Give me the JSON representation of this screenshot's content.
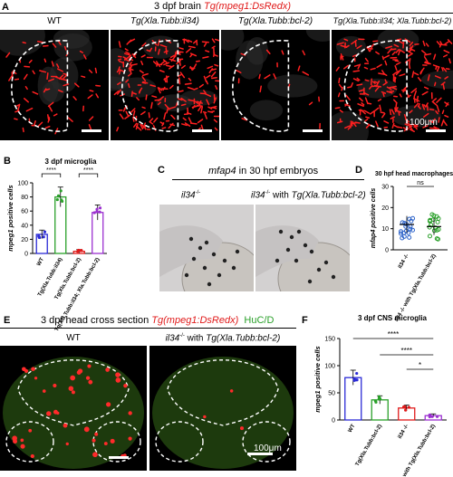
{
  "panelA": {
    "letter": "A",
    "title_prefix": "3 dpf brain ",
    "title_red": "Tg(mpeg1:DsRedx)",
    "labels": [
      "WT",
      "Tg(Xla.Tubb:il34)",
      "Tg(Xla.Tubb:bcl-2)",
      "Tg(Xla.Tubb:il34; Xla.Tubb:bcl-2)"
    ],
    "scale": "100μm"
  },
  "panelB": {
    "letter": "B",
    "chart_data": {
      "type": "bar",
      "title": "3 dpf microglia",
      "ylabel": "mpeg1 positive cells",
      "categories": [
        "WT",
        "Tg(Xla.Tubb:il34)",
        "Tg(Xla.Tubb:bcl-2)",
        "Tg(Xla.Tubb:il34; Xla.Tubb:bcl-2)"
      ],
      "values": [
        27,
        80,
        3,
        58
      ],
      "ylim": [
        0,
        100
      ],
      "yticks": [
        0,
        20,
        40,
        60,
        80,
        100
      ],
      "colors": [
        "#2b2bd6",
        "#2aa02a",
        "#e01a1a",
        "#9b30d0"
      ],
      "significance": [
        {
          "groups": [
            0,
            1
          ],
          "label": "****"
        },
        {
          "groups": [
            2,
            3
          ],
          "label": "****"
        }
      ]
    }
  },
  "panelC": {
    "letter": "C",
    "title_italic": "mfap4",
    "title_rest": " in 30 hpf embryos",
    "left_label": "il34",
    "right_label_italic": "il34",
    "right_label_mid": " with ",
    "right_label_tg": "Tg(Xla.Tubb:bcl-2)",
    "sup": "-/-"
  },
  "panelD": {
    "letter": "D",
    "chart_data": {
      "type": "scatter",
      "title": "30 hpf head macrophages",
      "ylabel": "mfap4 positive cells",
      "categories": [
        "il34 -/-",
        "il34 -/- with Tg(Xla.Tubb:bcl-2)"
      ],
      "means": [
        12,
        11
      ],
      "ylim": [
        0,
        30
      ],
      "yticks": [
        0,
        10,
        20,
        30
      ],
      "colors": [
        "#2b62c9",
        "#2aa02a"
      ],
      "significance": [
        {
          "groups": [
            0,
            1
          ],
          "label": "ns"
        }
      ]
    }
  },
  "panelE": {
    "letter": "E",
    "title_prefix": "3 dpf head cross section ",
    "title_red": "Tg(mpeg1:DsRedx)",
    "title_green": "HuC/D",
    "left_label": "WT",
    "right_label_italic": "il34",
    "sup": "-/-",
    "right_label_mid": " with ",
    "right_label_tg": "Tg(Xla.Tubb:bcl-2)",
    "scale": "100μm"
  },
  "panelF": {
    "letter": "F",
    "chart_data": {
      "type": "bar",
      "title": "3 dpf CNS microglia",
      "ylabel": "mpeg1 positive cells",
      "categories": [
        "WT",
        "Tg(Xla.Tubb:bcl-2)",
        "il34 -/-",
        "il34 -/- with Tg(Xla.Tubb:bcl-2)"
      ],
      "values": [
        78,
        37,
        22,
        8
      ],
      "ylim": [
        0,
        150
      ],
      "yticks": [
        0,
        50,
        100,
        150
      ],
      "colors": [
        "#2b2bd6",
        "#2aa02a",
        "#e01a1a",
        "#9b30d0"
      ],
      "significance": [
        {
          "groups": [
            0,
            3
          ],
          "label": "****"
        },
        {
          "groups": [
            1,
            3
          ],
          "label": "****"
        },
        {
          "groups": [
            2,
            3
          ],
          "label": "*"
        }
      ]
    }
  }
}
